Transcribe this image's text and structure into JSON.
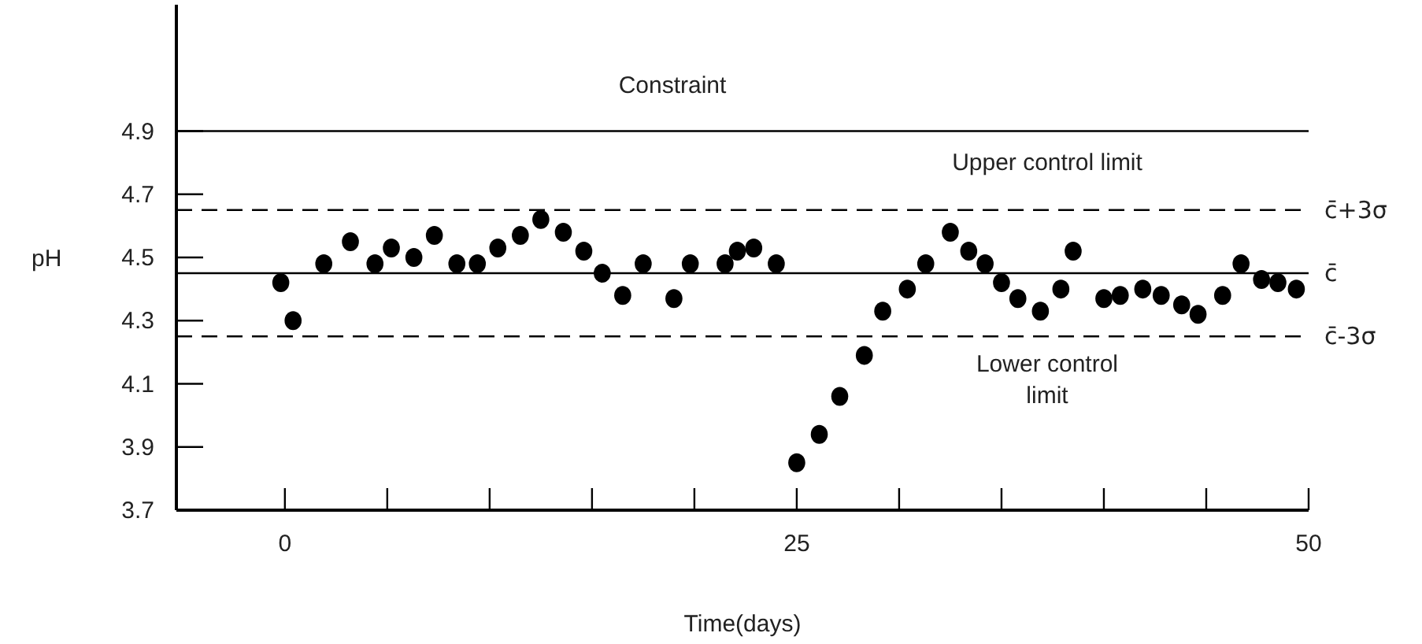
{
  "chart_data": {
    "type": "scatter",
    "xlabel": "Time(days)",
    "ylabel": "pH",
    "x": [
      -0.2,
      0.4,
      1.9,
      3.2,
      4.4,
      5.2,
      6.3,
      7.3,
      8.4,
      9.4,
      10.4,
      11.5,
      12.5,
      13.6,
      14.6,
      15.5,
      16.5,
      17.5,
      19.0,
      19.8,
      21.5,
      22.1,
      22.9,
      24.0,
      25.0,
      26.1,
      27.1,
      28.3,
      29.2,
      30.4,
      31.3,
      32.5,
      33.4,
      34.2,
      35.0,
      35.8,
      36.9,
      37.9,
      38.5,
      40.0,
      40.8,
      41.9,
      42.8,
      43.8,
      44.6,
      45.8,
      46.7,
      47.7,
      48.5,
      49.4
    ],
    "series": [
      {
        "color": "#000000",
        "values": [
          4.42,
          4.3,
          4.48,
          4.55,
          4.48,
          4.53,
          4.5,
          4.57,
          4.48,
          4.48,
          4.53,
          4.57,
          4.62,
          4.58,
          4.52,
          4.45,
          4.38,
          4.48,
          4.37,
          4.48,
          4.48,
          4.52,
          4.53,
          4.48,
          3.85,
          3.94,
          4.06,
          4.19,
          4.33,
          4.4,
          4.48,
          4.58,
          4.52,
          4.48,
          4.42,
          4.37,
          4.33,
          4.4,
          4.52,
          4.37,
          4.38,
          4.4,
          4.38,
          4.35,
          4.32,
          4.38,
          4.48,
          4.43,
          4.42,
          4.4
        ]
      }
    ],
    "marker": "circle",
    "xlim": [
      -5.3,
      50
    ],
    "ylim": [
      3.7,
      5.3
    ],
    "xticks": [
      0,
      {
        "value": 5,
        "label": null
      },
      {
        "value": 10,
        "label": null
      },
      {
        "value": 15,
        "label": null
      },
      {
        "value": 20,
        "label": null
      },
      25,
      {
        "value": 30,
        "label": null
      },
      {
        "value": 35,
        "label": null
      },
      {
        "value": 40,
        "label": null
      },
      {
        "value": 45,
        "label": null
      },
      50
    ],
    "yticks": [
      3.7,
      3.9,
      4.1,
      4.3,
      4.5,
      4.7,
      4.9
    ],
    "grid": false,
    "legend": false,
    "ref_lines": [
      {
        "axis": "y",
        "value": 4.9,
        "label": null,
        "color": "#000000",
        "line_style": "solid"
      },
      {
        "axis": "y",
        "value": 4.65,
        "label": "c̄+3σ",
        "color": "#000000",
        "line_style": "dashed"
      },
      {
        "axis": "y",
        "value": 4.45,
        "label": "c̄",
        "color": "#000000",
        "line_style": "solid"
      },
      {
        "axis": "y",
        "value": 4.25,
        "label": "c̄-3σ",
        "color": "#000000",
        "line_style": "dashed"
      }
    ],
    "annotations": [
      "Constraint",
      "Upper control limit",
      "Lower control limit"
    ]
  }
}
